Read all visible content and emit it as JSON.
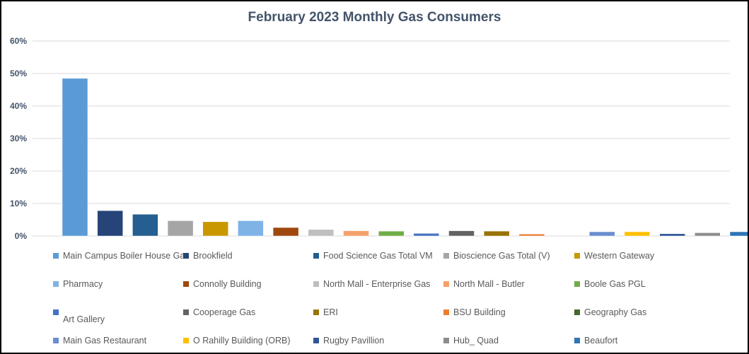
{
  "chart_data": {
    "type": "bar",
    "title": "February 2023 Monthly Gas Consumers",
    "xlabel": "",
    "ylabel": "",
    "ylim": [
      0,
      60
    ],
    "yticks": [
      "0%",
      "10%",
      "20%",
      "30%",
      "40%",
      "50%",
      "60%"
    ],
    "ytick_values": [
      0,
      10,
      20,
      30,
      40,
      50,
      60
    ],
    "grid": true,
    "legend_position": "bottom",
    "series": [
      {
        "name": "Main Campus Boiler House Gas",
        "value": 48.5,
        "color": "#5b9bd5"
      },
      {
        "name": "Brookfield",
        "value": 7.8,
        "color": "#264478"
      },
      {
        "name": "Food Science Gas Total VM",
        "value": 6.7,
        "color": "#255e91"
      },
      {
        "name": "Bioscience Gas Total (V)",
        "value": 4.7,
        "color": "#a5a5a5"
      },
      {
        "name": "Western Gateway",
        "value": 4.4,
        "color": "#c99800"
      },
      {
        "name": "Pharmacy",
        "value": 4.7,
        "color": "#7fb3e6"
      },
      {
        "name": "Connolly Building",
        "value": 2.6,
        "color": "#9e480e"
      },
      {
        "name": "North Mall - Enterprise  Gas",
        "value": 2.0,
        "color": "#bfbfbf"
      },
      {
        "name": "North Mall - Butler",
        "value": 1.6,
        "color": "#f4a06a"
      },
      {
        "name": "Boole  Gas PGL",
        "value": 1.5,
        "color": "#70ad47"
      },
      {
        "name": "\nArt Gallery",
        "value": 0.8,
        "color": "#4472c4"
      },
      {
        "name": "Cooperage Gas",
        "value": 1.6,
        "color": "#636363"
      },
      {
        "name": "ERI",
        "value": 1.5,
        "color": "#997300"
      },
      {
        "name": "BSU Building",
        "value": 0.6,
        "color": "#ed7d31"
      },
      {
        "name": "Geography Gas",
        "value": 0.0,
        "color": "#43682b"
      },
      {
        "name": "Main Gas Restaurant",
        "value": 1.3,
        "color": "#698ed0"
      },
      {
        "name": "O Rahilly Building (ORB)",
        "value": 1.3,
        "color": "#ffc000"
      },
      {
        "name": "Rugby Pavillion",
        "value": 0.7,
        "color": "#2f5597"
      },
      {
        "name": "Hub_ Quad",
        "value": 1.0,
        "color": "#8c8c8c"
      },
      {
        "name": "Beaufort",
        "value": 1.3,
        "color": "#2e75b6"
      }
    ]
  }
}
